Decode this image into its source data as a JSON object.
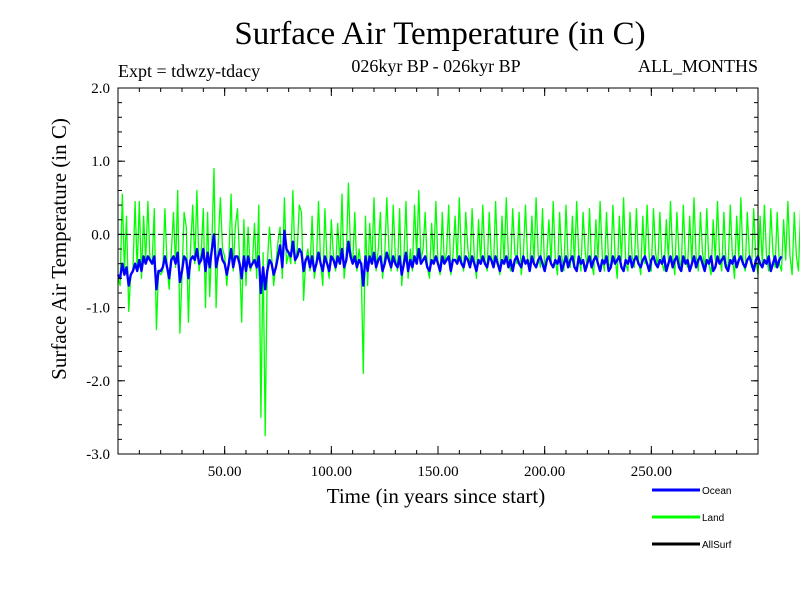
{
  "header": {
    "title": "Surface Air Temperature (in C)",
    "experiment": "Expt = tdwzy-tdacy",
    "period": "026kyr BP - 026kyr BP",
    "months": "ALL_MONTHS"
  },
  "chart_data": {
    "type": "line",
    "title": "Surface Air Temperature (in C)",
    "xlabel": "Time (in years since start)",
    "ylabel": "Surface Air Temperature (in C)",
    "xlim": [
      0,
      300
    ],
    "ylim": [
      -3.0,
      2.0
    ],
    "x_ticks": [
      50,
      100,
      150,
      200,
      250
    ],
    "x_tick_labels": [
      "50.00",
      "100.00",
      "150.00",
      "200.00",
      "250.00"
    ],
    "y_ticks": [
      -3.0,
      -2.0,
      -1.0,
      0.0,
      1.0,
      2.0
    ],
    "y_tick_labels": [
      "-3.0",
      "-2.0",
      "-1.0",
      "0.0",
      "1.0",
      "2.0"
    ],
    "reference_line": 0.0,
    "legend_position": "bottom-right",
    "x_step": 1,
    "series": [
      {
        "name": "Land",
        "color": "#00ff00",
        "values": [
          -0.6,
          -0.7,
          0.55,
          -0.5,
          0.25,
          -1.05,
          -0.55,
          -0.5,
          0.45,
          -0.5,
          0.45,
          -0.6,
          0.25,
          -0.35,
          0.45,
          -0.35,
          -0.4,
          0.35,
          -1.3,
          -0.5,
          -0.55,
          -0.5,
          0.35,
          -0.45,
          -0.75,
          -0.25,
          0.3,
          -0.45,
          0.6,
          -1.35,
          -0.55,
          0.3,
          0.1,
          -1.2,
          -0.2,
          0.4,
          -0.4,
          0.6,
          -0.5,
          -0.25,
          0.35,
          -1.0,
          0.3,
          -0.85,
          -0.1,
          0.9,
          -1.0,
          -0.1,
          0.5,
          -0.2,
          -0.3,
          -0.7,
          -0.3,
          0.55,
          -0.5,
          0.1,
          0.35,
          -0.35,
          -1.2,
          0.2,
          -0.7,
          0.1,
          -0.5,
          -0.4,
          0.15,
          -0.6,
          0.4,
          -2.5,
          -0.25,
          -2.75,
          -0.4,
          0.1,
          -0.3,
          -0.7,
          -0.4,
          -0.1,
          0.1,
          -0.6,
          0.5,
          -0.4,
          -0.25,
          -0.4,
          0.6,
          -0.4,
          -0.2,
          0.4,
          0.3,
          -0.9,
          -0.35,
          -0.2,
          -0.5,
          0.25,
          -0.6,
          -0.4,
          0.45,
          -0.4,
          -0.7,
          0.35,
          -0.4,
          -0.6,
          0.2,
          -0.3,
          -0.5,
          0.15,
          -0.4,
          0.55,
          -0.6,
          -0.3,
          0.7,
          -0.2,
          -0.4,
          0.3,
          -0.5,
          -0.2,
          -0.45,
          -1.9,
          0.25,
          -0.7,
          0.15,
          -0.4,
          0.5,
          -0.5,
          -0.2,
          0.3,
          -0.6,
          -0.3,
          0.5,
          -0.2,
          -0.5,
          0.4,
          -0.3,
          -0.5,
          0.35,
          -0.7,
          -0.3,
          0.45,
          -0.6,
          -0.2,
          -0.5,
          0.4,
          -0.3,
          0.6,
          -0.35,
          -0.2,
          0.3,
          -0.45,
          -0.6,
          0.15,
          -0.35,
          0.45,
          -0.4,
          -0.55,
          0.3,
          -0.4,
          -0.25,
          0.4,
          -0.55,
          -0.3,
          0.25,
          -0.4,
          0.5,
          -0.35,
          -0.5,
          0.3,
          -0.2,
          -0.45,
          0.35,
          -0.3,
          -0.6,
          0.2,
          -0.4,
          0.4,
          -0.35,
          -0.5,
          0.3,
          -0.3,
          -0.45,
          0.45,
          -0.35,
          -0.55,
          0.25,
          -0.4,
          0.5,
          -0.3,
          -0.5,
          0.35,
          -0.25,
          -0.4,
          0.3,
          -0.55,
          -0.3,
          0.4,
          -0.35,
          -0.5,
          0.25,
          -0.4,
          0.5,
          -0.3,
          -0.45,
          0.35,
          -0.5,
          -0.3,
          0.2,
          -0.4,
          0.45,
          -0.35,
          -0.55,
          0.3,
          -0.3,
          -0.5,
          0.4,
          -0.35,
          -0.45,
          0.25,
          -0.4,
          0.45,
          -0.3,
          -0.5,
          0.3,
          -0.25,
          -0.45,
          0.35,
          -0.4,
          -0.55,
          0.2,
          -0.35,
          0.45,
          -0.3,
          -0.5,
          0.3,
          -0.4,
          -0.45,
          0.4,
          -0.3,
          -0.6,
          0.25,
          -0.35,
          0.5,
          -0.4,
          -0.5,
          0.3,
          -0.3,
          -0.45,
          0.35,
          -0.35,
          -0.55,
          0.25,
          -0.4,
          0.4,
          -0.3,
          -0.5,
          0.35,
          -0.25,
          -0.45,
          0.3,
          -0.4,
          -0.5,
          0.2,
          -0.35,
          0.45,
          -0.3,
          -0.55,
          0.3,
          -0.3,
          -0.5,
          0.4,
          -0.35,
          -0.45,
          0.25,
          -0.4,
          0.5,
          -0.3,
          -0.5,
          0.3,
          -0.25,
          -0.45,
          0.35,
          -0.4,
          -0.55,
          0.2,
          -0.35,
          0.45,
          -0.3,
          -0.5,
          0.3,
          -0.4,
          -0.45,
          0.4,
          -0.3,
          -0.6,
          0.25,
          -0.35,
          0.5,
          -0.4,
          -0.5,
          0.3,
          -0.3,
          -0.45,
          0.35,
          -0.35,
          -0.55,
          0.25,
          -0.4,
          0.4,
          -0.3,
          -0.5,
          0.35,
          -0.25,
          -0.45,
          0.3,
          -0.4,
          -0.5,
          0.2,
          -0.35,
          0.45,
          -0.3,
          -0.55,
          0.3,
          -0.3,
          -0.5,
          0.4,
          -0.35,
          -0.45,
          0.25,
          -0.4,
          0.5,
          -0.3,
          -0.5,
          0.3,
          -0.25,
          -0.45
        ]
      },
      {
        "name": "Ocean",
        "color": "#0000ff",
        "values": [
          -0.55,
          -0.6,
          -0.4,
          -0.55,
          -0.45,
          -0.7,
          -0.55,
          -0.5,
          -0.4,
          -0.5,
          -0.35,
          -0.5,
          -0.3,
          -0.4,
          -0.3,
          -0.35,
          -0.4,
          -0.3,
          -0.75,
          -0.5,
          -0.5,
          -0.45,
          -0.3,
          -0.45,
          -0.6,
          -0.35,
          -0.3,
          -0.4,
          -0.25,
          -0.65,
          -0.5,
          -0.3,
          -0.35,
          -0.6,
          -0.35,
          -0.3,
          -0.35,
          -0.2,
          -0.4,
          -0.35,
          -0.2,
          -0.5,
          -0.25,
          -0.45,
          -0.2,
          0.0,
          -0.45,
          -0.3,
          -0.2,
          -0.35,
          -0.4,
          -0.55,
          -0.4,
          -0.2,
          -0.45,
          -0.3,
          -0.3,
          -0.4,
          -0.6,
          -0.3,
          -0.5,
          -0.3,
          -0.45,
          -0.4,
          -0.35,
          -0.45,
          -0.3,
          -0.8,
          -0.45,
          -0.75,
          -0.5,
          -0.35,
          -0.4,
          -0.55,
          -0.45,
          -0.3,
          -0.15,
          -0.45,
          0.05,
          -0.2,
          -0.25,
          -0.3,
          -0.1,
          -0.35,
          -0.3,
          -0.2,
          -0.25,
          -0.5,
          -0.35,
          -0.3,
          -0.45,
          -0.3,
          -0.5,
          -0.4,
          -0.25,
          -0.4,
          -0.5,
          -0.3,
          -0.4,
          -0.5,
          -0.3,
          -0.35,
          -0.45,
          -0.3,
          -0.4,
          -0.2,
          -0.45,
          -0.35,
          -0.1,
          -0.3,
          -0.4,
          -0.3,
          -0.45,
          -0.35,
          -0.4,
          -0.7,
          -0.3,
          -0.5,
          -0.3,
          -0.4,
          -0.25,
          -0.45,
          -0.35,
          -0.3,
          -0.5,
          -0.4,
          -0.25,
          -0.35,
          -0.45,
          -0.3,
          -0.4,
          -0.45,
          -0.3,
          -0.55,
          -0.4,
          -0.25,
          -0.5,
          -0.35,
          -0.45,
          -0.3,
          -0.4,
          -0.2,
          -0.4,
          -0.35,
          -0.3,
          -0.45,
          -0.5,
          -0.35,
          -0.4,
          -0.3,
          -0.4,
          -0.5,
          -0.3,
          -0.4,
          -0.35,
          -0.3,
          -0.5,
          -0.35,
          -0.35,
          -0.4,
          -0.3,
          -0.4,
          -0.45,
          -0.3,
          -0.35,
          -0.45,
          -0.3,
          -0.4,
          -0.5,
          -0.35,
          -0.4,
          -0.3,
          -0.4,
          -0.45,
          -0.3,
          -0.35,
          -0.45,
          -0.3,
          -0.4,
          -0.5,
          -0.35,
          -0.4,
          -0.3,
          -0.45,
          -0.35,
          -0.5,
          -0.35,
          -0.3,
          -0.4,
          -0.45,
          -0.3,
          -0.4,
          -0.35,
          -0.5,
          -0.3,
          -0.4,
          -0.45,
          -0.35,
          -0.3,
          -0.4,
          -0.5,
          -0.35,
          -0.3,
          -0.4,
          -0.45,
          -0.35,
          -0.4,
          -0.3,
          -0.5,
          -0.4,
          -0.3,
          -0.45,
          -0.35,
          -0.3,
          -0.45,
          -0.5,
          -0.3,
          -0.4,
          -0.35,
          -0.5,
          -0.4,
          -0.3,
          -0.45,
          -0.35,
          -0.3,
          -0.4,
          -0.5,
          -0.35,
          -0.4,
          -0.3,
          -0.5,
          -0.45,
          -0.3,
          -0.4,
          -0.35,
          -0.3,
          -0.45,
          -0.5,
          -0.35,
          -0.4,
          -0.3,
          -0.45,
          -0.35,
          -0.3,
          -0.4,
          -0.45,
          -0.35,
          -0.3,
          -0.4,
          -0.5,
          -0.35,
          -0.3,
          -0.4,
          -0.45,
          -0.35,
          -0.4,
          -0.3,
          -0.5,
          -0.4,
          -0.3,
          -0.45,
          -0.35,
          -0.3,
          -0.45,
          -0.5,
          -0.3,
          -0.4,
          -0.35,
          -0.5,
          -0.4,
          -0.3,
          -0.45,
          -0.35,
          -0.3,
          -0.4,
          -0.5,
          -0.35,
          -0.4,
          -0.3,
          -0.5,
          -0.45,
          -0.3,
          -0.4,
          -0.35,
          -0.3,
          -0.45,
          -0.5,
          -0.35,
          -0.4,
          -0.3,
          -0.45,
          -0.35,
          -0.3,
          -0.4,
          -0.45,
          -0.35,
          -0.3,
          -0.4,
          -0.5,
          -0.35,
          -0.3,
          -0.4,
          -0.45,
          -0.35,
          -0.4,
          -0.3,
          -0.5,
          -0.4,
          -0.3,
          -0.45,
          -0.35,
          -0.3
        ]
      },
      {
        "name": "AllSurf",
        "color": "#000000",
        "values": []
      }
    ]
  }
}
